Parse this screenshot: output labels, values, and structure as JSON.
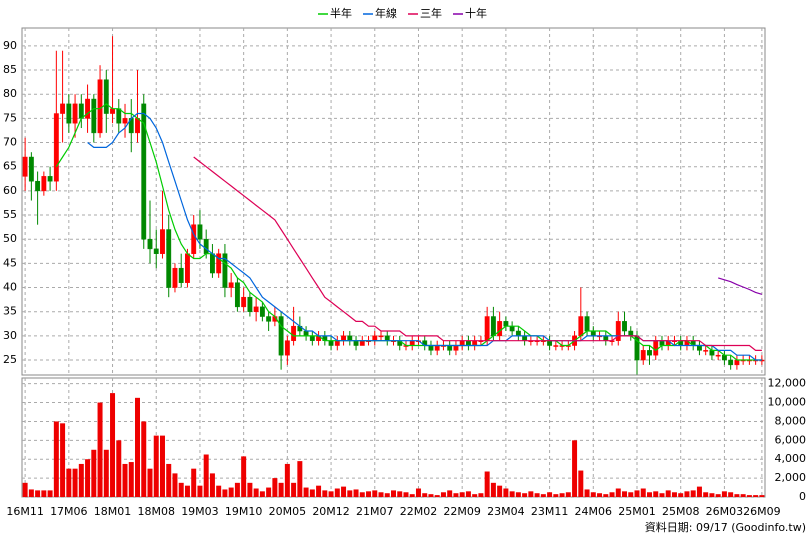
{
  "chart_data": {
    "type": "candlestick",
    "categories": [
      "16M11",
      null,
      null,
      null,
      null,
      null,
      null,
      "17M06",
      null,
      null,
      null,
      null,
      null,
      null,
      "18M01",
      null,
      null,
      null,
      null,
      null,
      null,
      "18M08",
      null,
      null,
      null,
      null,
      null,
      null,
      "19M03",
      null,
      null,
      null,
      null,
      null,
      null,
      "19M10",
      null,
      null,
      null,
      null,
      null,
      null,
      "20M05",
      null,
      null,
      null,
      null,
      null,
      null,
      "20M12",
      null,
      null,
      null,
      null,
      null,
      null,
      "21M07",
      null,
      null,
      null,
      null,
      null,
      null,
      "22M02",
      null,
      null,
      null,
      null,
      null,
      null,
      "22M09",
      null,
      null,
      null,
      null,
      null,
      null,
      "23M04",
      null,
      null,
      null,
      null,
      null,
      null,
      "23M11",
      null,
      null,
      null,
      null,
      null,
      null,
      "24M06",
      null,
      null,
      null,
      null,
      null,
      null,
      "25M01",
      null,
      null,
      null,
      null,
      null,
      null,
      "25M08",
      null,
      null,
      null,
      null,
      null,
      null,
      "26M03",
      null,
      null,
      null,
      null,
      null,
      "26M09"
    ],
    "ohlc": [
      [
        63,
        71,
        60,
        67
      ],
      [
        67,
        68,
        58,
        62
      ],
      [
        62,
        64,
        53,
        60
      ],
      [
        60,
        64,
        59,
        63
      ],
      [
        63,
        65,
        60,
        62
      ],
      [
        62,
        89,
        60,
        76
      ],
      [
        76,
        89,
        70,
        78
      ],
      [
        78,
        80,
        72,
        74
      ],
      [
        74,
        80,
        71,
        78
      ],
      [
        78,
        80,
        73,
        75
      ],
      [
        75,
        82,
        72,
        79
      ],
      [
        79,
        80,
        70,
        72
      ],
      [
        72,
        86,
        71,
        83
      ],
      [
        83,
        85,
        72,
        76
      ],
      [
        76,
        92,
        74,
        77
      ],
      [
        77,
        79,
        72,
        74
      ],
      [
        74,
        78,
        71,
        75
      ],
      [
        75,
        79,
        68,
        72
      ],
      [
        72,
        85,
        70,
        75
      ],
      [
        78,
        80,
        48,
        50
      ],
      [
        50,
        58,
        45,
        48
      ],
      [
        48,
        52,
        44,
        47
      ],
      [
        47,
        60,
        46,
        52
      ],
      [
        52,
        55,
        38,
        40
      ],
      [
        40,
        45,
        39,
        44
      ],
      [
        44,
        47,
        40,
        41
      ],
      [
        41,
        48,
        40,
        47
      ],
      [
        47,
        55,
        46,
        53
      ],
      [
        53,
        56,
        48,
        50
      ],
      [
        50,
        52,
        46,
        47
      ],
      [
        47,
        49,
        42,
        43
      ],
      [
        43,
        48,
        42,
        47
      ],
      [
        47,
        49,
        38,
        40
      ],
      [
        40,
        43,
        38,
        41
      ],
      [
        41,
        42,
        35,
        36
      ],
      [
        36,
        40,
        35,
        38
      ],
      [
        38,
        39,
        34,
        35
      ],
      [
        35,
        38,
        33,
        36
      ],
      [
        36,
        37,
        33,
        34
      ],
      [
        34,
        35,
        31,
        33
      ],
      [
        33,
        36,
        32,
        34
      ],
      [
        34,
        35,
        23,
        26
      ],
      [
        26,
        30,
        24,
        29
      ],
      [
        29,
        36,
        28,
        32
      ],
      [
        32,
        34,
        30,
        31
      ],
      [
        31,
        32,
        29,
        30
      ],
      [
        30,
        31,
        28,
        29
      ],
      [
        29,
        31,
        28,
        30
      ],
      [
        30,
        31,
        28,
        29
      ],
      [
        29,
        30,
        27,
        28
      ],
      [
        28,
        30,
        27,
        29
      ],
      [
        29,
        31,
        28,
        30
      ],
      [
        30,
        31,
        28,
        29
      ],
      [
        29,
        30,
        27,
        28
      ],
      [
        28,
        30,
        28,
        29
      ],
      [
        29,
        30,
        28,
        29
      ],
      [
        29,
        31,
        28,
        30
      ],
      [
        30,
        31,
        29,
        30
      ],
      [
        30,
        31,
        28,
        29
      ],
      [
        29,
        30,
        28,
        29
      ],
      [
        29,
        30,
        27,
        28
      ],
      [
        28,
        29,
        27,
        28
      ],
      [
        28,
        30,
        27,
        29
      ],
      [
        29,
        30,
        28,
        29
      ],
      [
        29,
        30,
        27,
        28
      ],
      [
        28,
        29,
        26,
        27
      ],
      [
        27,
        29,
        26,
        28
      ],
      [
        28,
        29,
        27,
        28
      ],
      [
        28,
        29,
        26,
        27
      ],
      [
        27,
        29,
        26,
        28
      ],
      [
        28,
        30,
        27,
        29
      ],
      [
        29,
        30,
        27,
        28
      ],
      [
        28,
        30,
        27,
        29
      ],
      [
        29,
        30,
        28,
        29
      ],
      [
        29,
        36,
        28,
        34
      ],
      [
        34,
        36,
        29,
        30
      ],
      [
        30,
        35,
        29,
        33
      ],
      [
        33,
        34,
        31,
        32
      ],
      [
        32,
        33,
        30,
        31
      ],
      [
        31,
        32,
        29,
        30
      ],
      [
        30,
        31,
        28,
        29
      ],
      [
        29,
        30,
        28,
        29
      ],
      [
        29,
        30,
        28,
        29
      ],
      [
        29,
        30,
        28,
        29
      ],
      [
        29,
        30,
        27,
        28
      ],
      [
        28,
        29,
        27,
        28
      ],
      [
        28,
        29,
        27,
        28
      ],
      [
        28,
        29,
        27,
        28
      ],
      [
        28,
        31,
        27,
        30
      ],
      [
        30,
        40,
        29,
        34
      ],
      [
        34,
        35,
        30,
        31
      ],
      [
        31,
        32,
        29,
        30
      ],
      [
        30,
        31,
        29,
        30
      ],
      [
        30,
        31,
        28,
        29
      ],
      [
        29,
        30,
        28,
        29
      ],
      [
        29,
        35,
        28,
        33
      ],
      [
        33,
        35,
        30,
        31
      ],
      [
        31,
        32,
        29,
        30
      ],
      [
        30,
        31,
        22,
        25
      ],
      [
        25,
        28,
        24,
        27
      ],
      [
        27,
        28,
        24,
        26
      ],
      [
        26,
        30,
        25,
        29
      ],
      [
        29,
        30,
        27,
        28
      ],
      [
        28,
        30,
        27,
        29
      ],
      [
        29,
        30,
        28,
        29
      ],
      [
        29,
        30,
        27,
        28
      ],
      [
        28,
        30,
        27,
        29
      ],
      [
        29,
        30,
        27,
        28
      ],
      [
        28,
        29,
        26,
        27
      ],
      [
        27,
        28,
        26,
        27
      ],
      [
        27,
        28,
        25,
        26
      ],
      [
        26,
        27,
        25,
        26
      ],
      [
        26,
        27,
        24,
        25
      ],
      [
        25,
        26,
        23,
        24
      ],
      [
        24,
        26,
        23,
        25
      ],
      [
        25,
        26,
        24,
        25
      ],
      [
        25,
        26,
        24,
        25
      ],
      [
        25,
        26,
        24,
        25
      ],
      [
        25,
        26,
        24,
        25
      ]
    ],
    "up_color": "#ff0000",
    "down_color": "#008800",
    "ylim": [
      21.9,
      93.7
    ],
    "yticks": [
      25,
      30,
      35,
      40,
      45,
      50,
      55,
      60,
      65,
      70,
      75,
      80,
      85,
      90
    ],
    "grid": true,
    "legend": "top",
    "series": [
      {
        "name": "半年",
        "color": "#00cc00",
        "values": [
          null,
          null,
          null,
          null,
          null,
          65,
          67,
          69,
          72,
          75,
          76,
          77,
          77,
          78,
          77,
          77,
          76,
          76,
          75,
          74,
          70,
          66,
          61,
          56,
          52,
          49,
          47,
          46,
          46,
          47,
          47,
          46,
          45,
          44,
          42,
          41,
          39,
          38,
          37,
          35,
          34,
          32,
          31,
          30,
          30,
          30,
          30,
          30,
          29,
          29,
          29,
          29,
          29,
          29,
          29,
          29,
          29,
          29,
          29,
          29,
          29,
          28,
          28,
          28,
          28,
          28,
          28,
          28,
          28,
          28,
          28,
          28,
          28,
          28,
          29,
          30,
          31,
          32,
          32,
          32,
          31,
          30,
          30,
          29,
          29,
          29,
          28,
          28,
          29,
          30,
          31,
          31,
          31,
          31,
          30,
          30,
          30,
          30,
          29,
          28,
          28,
          27,
          28,
          28,
          28,
          29,
          29,
          28,
          28,
          28,
          27,
          27,
          26,
          26,
          25,
          25,
          25,
          25,
          25
        ]
      },
      {
        "name": "年線",
        "color": "#0066dd",
        "values": [
          null,
          null,
          null,
          null,
          null,
          null,
          null,
          null,
          null,
          null,
          70,
          69,
          69,
          69,
          70,
          72,
          73,
          75,
          76,
          76,
          75,
          73,
          70,
          66,
          62,
          58,
          54,
          51,
          49,
          48,
          47,
          46,
          46,
          45,
          44,
          43,
          42,
          40,
          38,
          37,
          36,
          35,
          34,
          33,
          32,
          31,
          31,
          30,
          30,
          30,
          29,
          29,
          29,
          29,
          29,
          29,
          29,
          29,
          29,
          29,
          29,
          29,
          29,
          29,
          28,
          28,
          28,
          28,
          28,
          28,
          28,
          28,
          28,
          28,
          28,
          29,
          29,
          29,
          30,
          30,
          30,
          30,
          30,
          30,
          29,
          29,
          29,
          29,
          29,
          29,
          30,
          30,
          30,
          30,
          30,
          30,
          30,
          30,
          30,
          29,
          29,
          29,
          29,
          29,
          28,
          28,
          28,
          28,
          28,
          28,
          28,
          27,
          27,
          27,
          26,
          26,
          26,
          25,
          25
        ]
      },
      {
        "name": "三年",
        "color": "#dd0055",
        "values": [
          null,
          null,
          null,
          null,
          null,
          null,
          null,
          null,
          null,
          null,
          null,
          null,
          null,
          null,
          null,
          null,
          null,
          null,
          null,
          null,
          null,
          null,
          null,
          null,
          null,
          null,
          null,
          67,
          66,
          65,
          64,
          63,
          62,
          61,
          60,
          59,
          58,
          57,
          56,
          55,
          54,
          52,
          50,
          48,
          46,
          44,
          42,
          40,
          38,
          37,
          36,
          35,
          34,
          33,
          33,
          32,
          32,
          31,
          31,
          31,
          31,
          30,
          30,
          30,
          30,
          30,
          30,
          29,
          29,
          29,
          29,
          29,
          29,
          29,
          29,
          29,
          29,
          29,
          29,
          29,
          29,
          29,
          29,
          29,
          29,
          29,
          29,
          29,
          29,
          29,
          29,
          29,
          29,
          29,
          29,
          30,
          30,
          30,
          30,
          29,
          29,
          29,
          29,
          29,
          29,
          29,
          29,
          29,
          29,
          28,
          28,
          28,
          28,
          28,
          28,
          28,
          28,
          27,
          27
        ]
      },
      {
        "name": "十年",
        "color": "#8800aa",
        "values": [
          null,
          null,
          null,
          null,
          null,
          null,
          null,
          null,
          null,
          null,
          null,
          null,
          null,
          null,
          null,
          null,
          null,
          null,
          null,
          null,
          null,
          null,
          null,
          null,
          null,
          null,
          null,
          null,
          null,
          null,
          null,
          null,
          null,
          null,
          null,
          null,
          null,
          null,
          null,
          null,
          null,
          null,
          null,
          null,
          null,
          null,
          null,
          null,
          null,
          null,
          null,
          null,
          null,
          null,
          null,
          null,
          null,
          null,
          null,
          null,
          null,
          null,
          null,
          null,
          null,
          null,
          null,
          null,
          null,
          null,
          null,
          null,
          null,
          null,
          null,
          null,
          null,
          null,
          null,
          null,
          null,
          null,
          null,
          null,
          null,
          null,
          null,
          null,
          null,
          null,
          null,
          null,
          null,
          null,
          null,
          null,
          null,
          null,
          null,
          null,
          null,
          null,
          null,
          null,
          null,
          null,
          null,
          null,
          null,
          null,
          null,
          42,
          41.6,
          41.2,
          40.6,
          40.1,
          39.6,
          39,
          38.6
        ]
      }
    ],
    "volume": {
      "color": "#ee0000",
      "values": [
        1500,
        800,
        700,
        700,
        700,
        8000,
        7800,
        3000,
        3000,
        3500,
        4000,
        5000,
        10000,
        5000,
        11000,
        6000,
        3500,
        3700,
        10500,
        8000,
        3000,
        6500,
        6500,
        3500,
        2500,
        1500,
        1200,
        3000,
        1200,
        4500,
        2500,
        1200,
        800,
        1000,
        1500,
        4300,
        1500,
        900,
        600,
        1000,
        2000,
        1500,
        3500,
        1500,
        3800,
        1000,
        800,
        1200,
        700,
        600,
        900,
        1100,
        700,
        800,
        500,
        600,
        700,
        500,
        400,
        700,
        600,
        500,
        300,
        900,
        400,
        300,
        200,
        500,
        700,
        400,
        500,
        600,
        300,
        400,
        2700,
        1500,
        1200,
        900,
        600,
        500,
        400,
        600,
        400,
        300,
        500,
        300,
        400,
        500,
        6000,
        2800,
        800,
        500,
        400,
        300,
        500,
        900,
        600,
        500,
        700,
        900,
        500,
        600,
        400,
        700,
        500,
        400,
        600,
        700,
        1100,
        500,
        400,
        300,
        600,
        500,
        300,
        300,
        200,
        200,
        200
      ],
      "ylim": [
        0,
        12600
      ],
      "yticks": [
        0,
        {
          "value": 2000,
          "label": "2,000"
        },
        {
          "value": 4000,
          "label": "4,000"
        },
        {
          "value": 6000,
          "label": "6,000"
        },
        {
          "value": 8000,
          "label": "8,000"
        },
        {
          "value": 10000,
          "label": "10,000"
        },
        {
          "value": 12000,
          "label": "12,000"
        }
      ]
    },
    "footer": "資料日期: 09/17 (Goodinfo.tw)"
  }
}
